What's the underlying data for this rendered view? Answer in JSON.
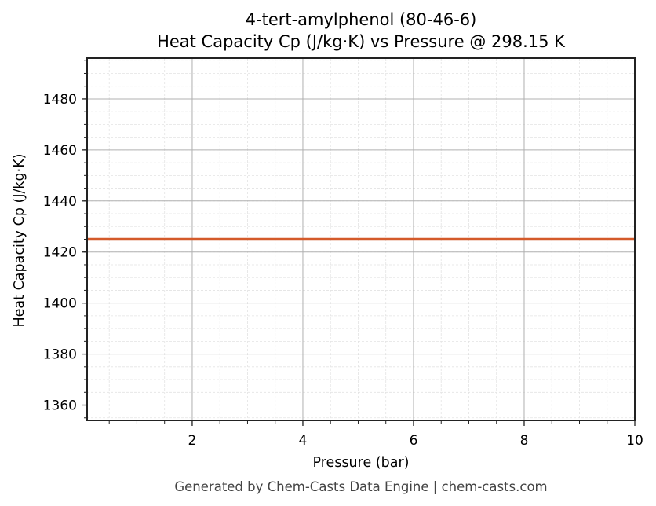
{
  "chart_data": {
    "type": "line",
    "title": "4-tert-amylphenol (80-46-6)",
    "subtitle": "Heat Capacity Cp (J/kg·K) vs Pressure @ 298.15 K",
    "xlabel": "Pressure (bar)",
    "ylabel": "Heat Capacity Cp (J/kg·K)",
    "xlim": [
      0.1,
      10
    ],
    "ylim": [
      1354,
      1496
    ],
    "x_ticks": [
      2,
      4,
      6,
      8,
      10
    ],
    "y_ticks": [
      1360,
      1380,
      1400,
      1420,
      1440,
      1460,
      1480
    ],
    "grid": true,
    "legend": null,
    "series": [
      {
        "name": "Cp",
        "color": "#d45a2a",
        "x": [
          0.1,
          10
        ],
        "values": [
          1425,
          1425
        ]
      }
    ],
    "footer": "Generated by Chem-Casts Data Engine | chem-casts.com"
  }
}
